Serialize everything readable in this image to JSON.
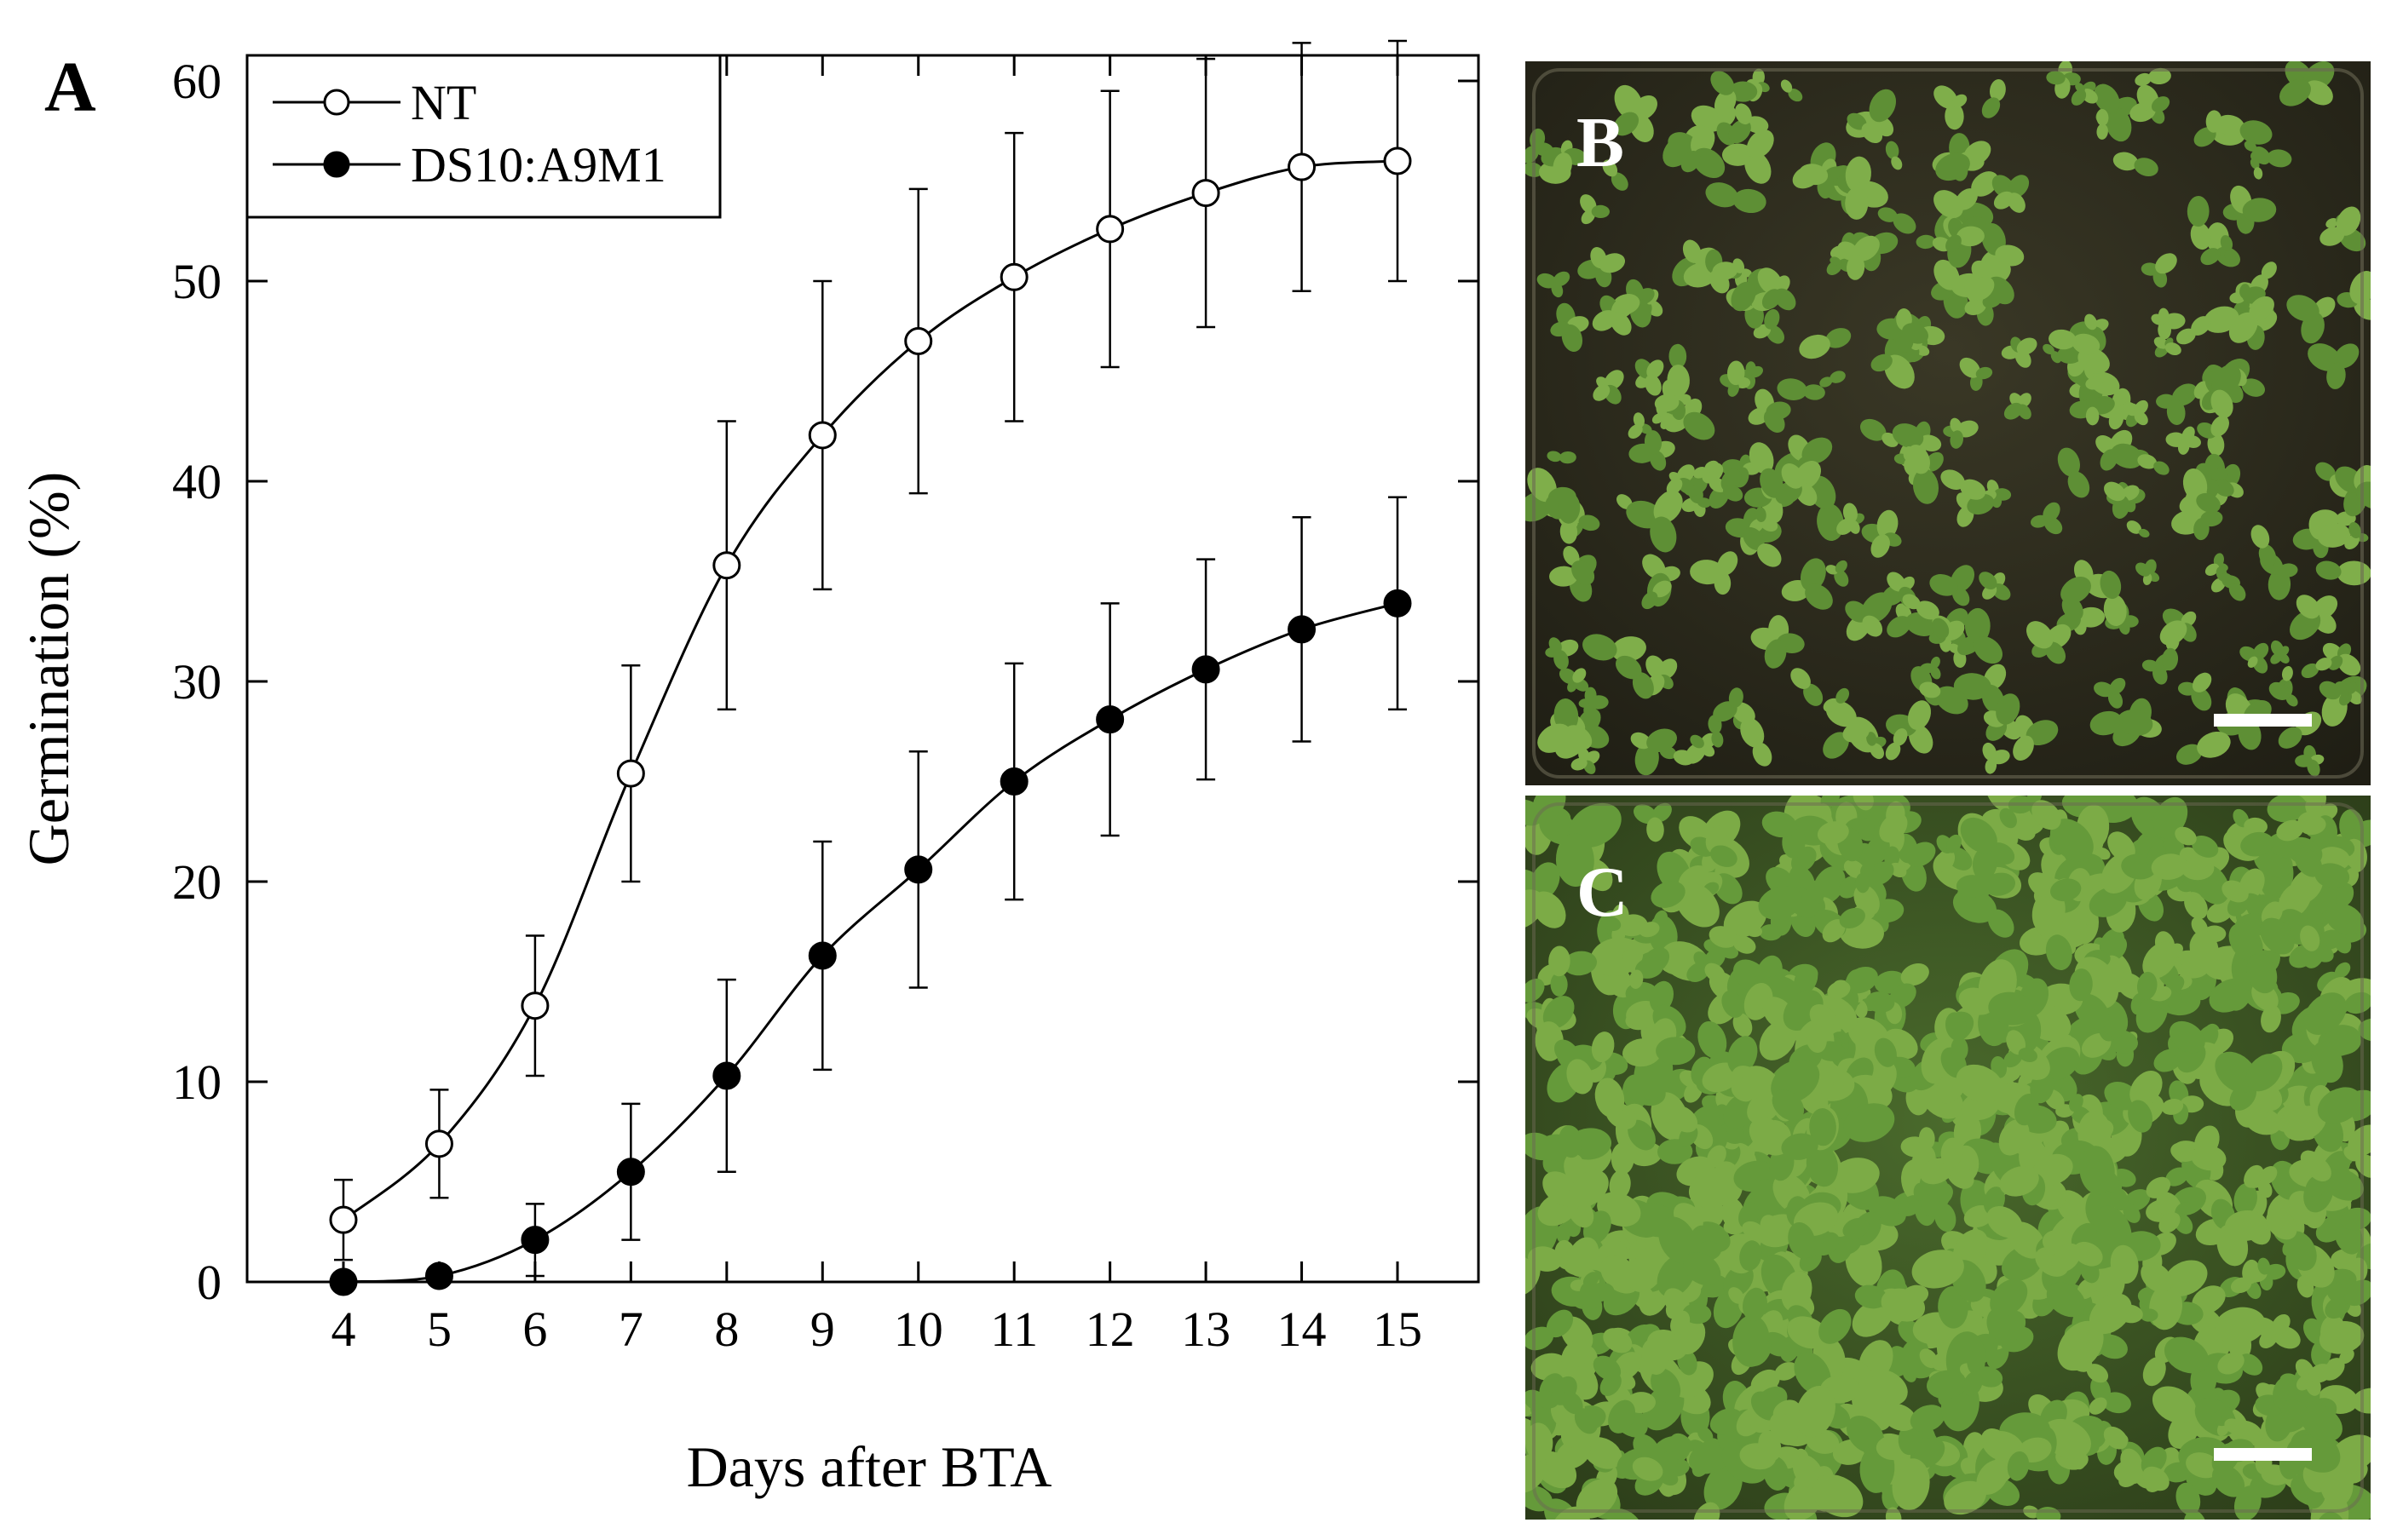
{
  "panels": {
    "a_label": "A",
    "b_label": "B",
    "c_label": "C"
  },
  "colors": {
    "axis": "#000000",
    "plate_background": "#2b2a1e",
    "seedling": "#7cab46",
    "seedling_dark": "#5b8a32",
    "scale_bar": "#ffffff"
  },
  "chart_data": {
    "type": "line",
    "title": "",
    "xlabel": "Days after BTA",
    "ylabel": "Germination (%)",
    "x": [
      4,
      5,
      6,
      7,
      8,
      9,
      10,
      11,
      12,
      13,
      14,
      15
    ],
    "xticks": [
      "4",
      "5",
      "6",
      "7",
      "8",
      "9",
      "10",
      "11",
      "12",
      "13",
      "14",
      "15"
    ],
    "yticks": [
      "0",
      "10",
      "20",
      "30",
      "40",
      "50",
      "60"
    ],
    "xlim": [
      3.0,
      16.0
    ],
    "ylim": [
      0,
      65
    ],
    "grid": false,
    "legend_position": "top-left",
    "series": [
      {
        "name": "NT",
        "marker": "open-circle",
        "values": [
          3.1,
          6.9,
          13.8,
          25.4,
          35.8,
          42.3,
          47.0,
          50.2,
          52.6,
          54.4,
          55.7,
          56.0
        ],
        "errors": [
          2.0,
          2.7,
          3.5,
          5.4,
          7.2,
          7.7,
          7.6,
          7.2,
          6.9,
          6.7,
          6.2,
          6.0
        ]
      },
      {
        "name": "DS10:A9M1",
        "marker": "filled-circle",
        "values": [
          0.0,
          0.3,
          2.1,
          5.5,
          10.3,
          16.3,
          20.6,
          25.0,
          28.1,
          30.6,
          32.6,
          33.9
        ],
        "errors": [
          0.0,
          0.3,
          1.8,
          3.4,
          4.8,
          5.7,
          5.9,
          5.9,
          5.8,
          5.5,
          5.6,
          5.3
        ]
      }
    ]
  }
}
